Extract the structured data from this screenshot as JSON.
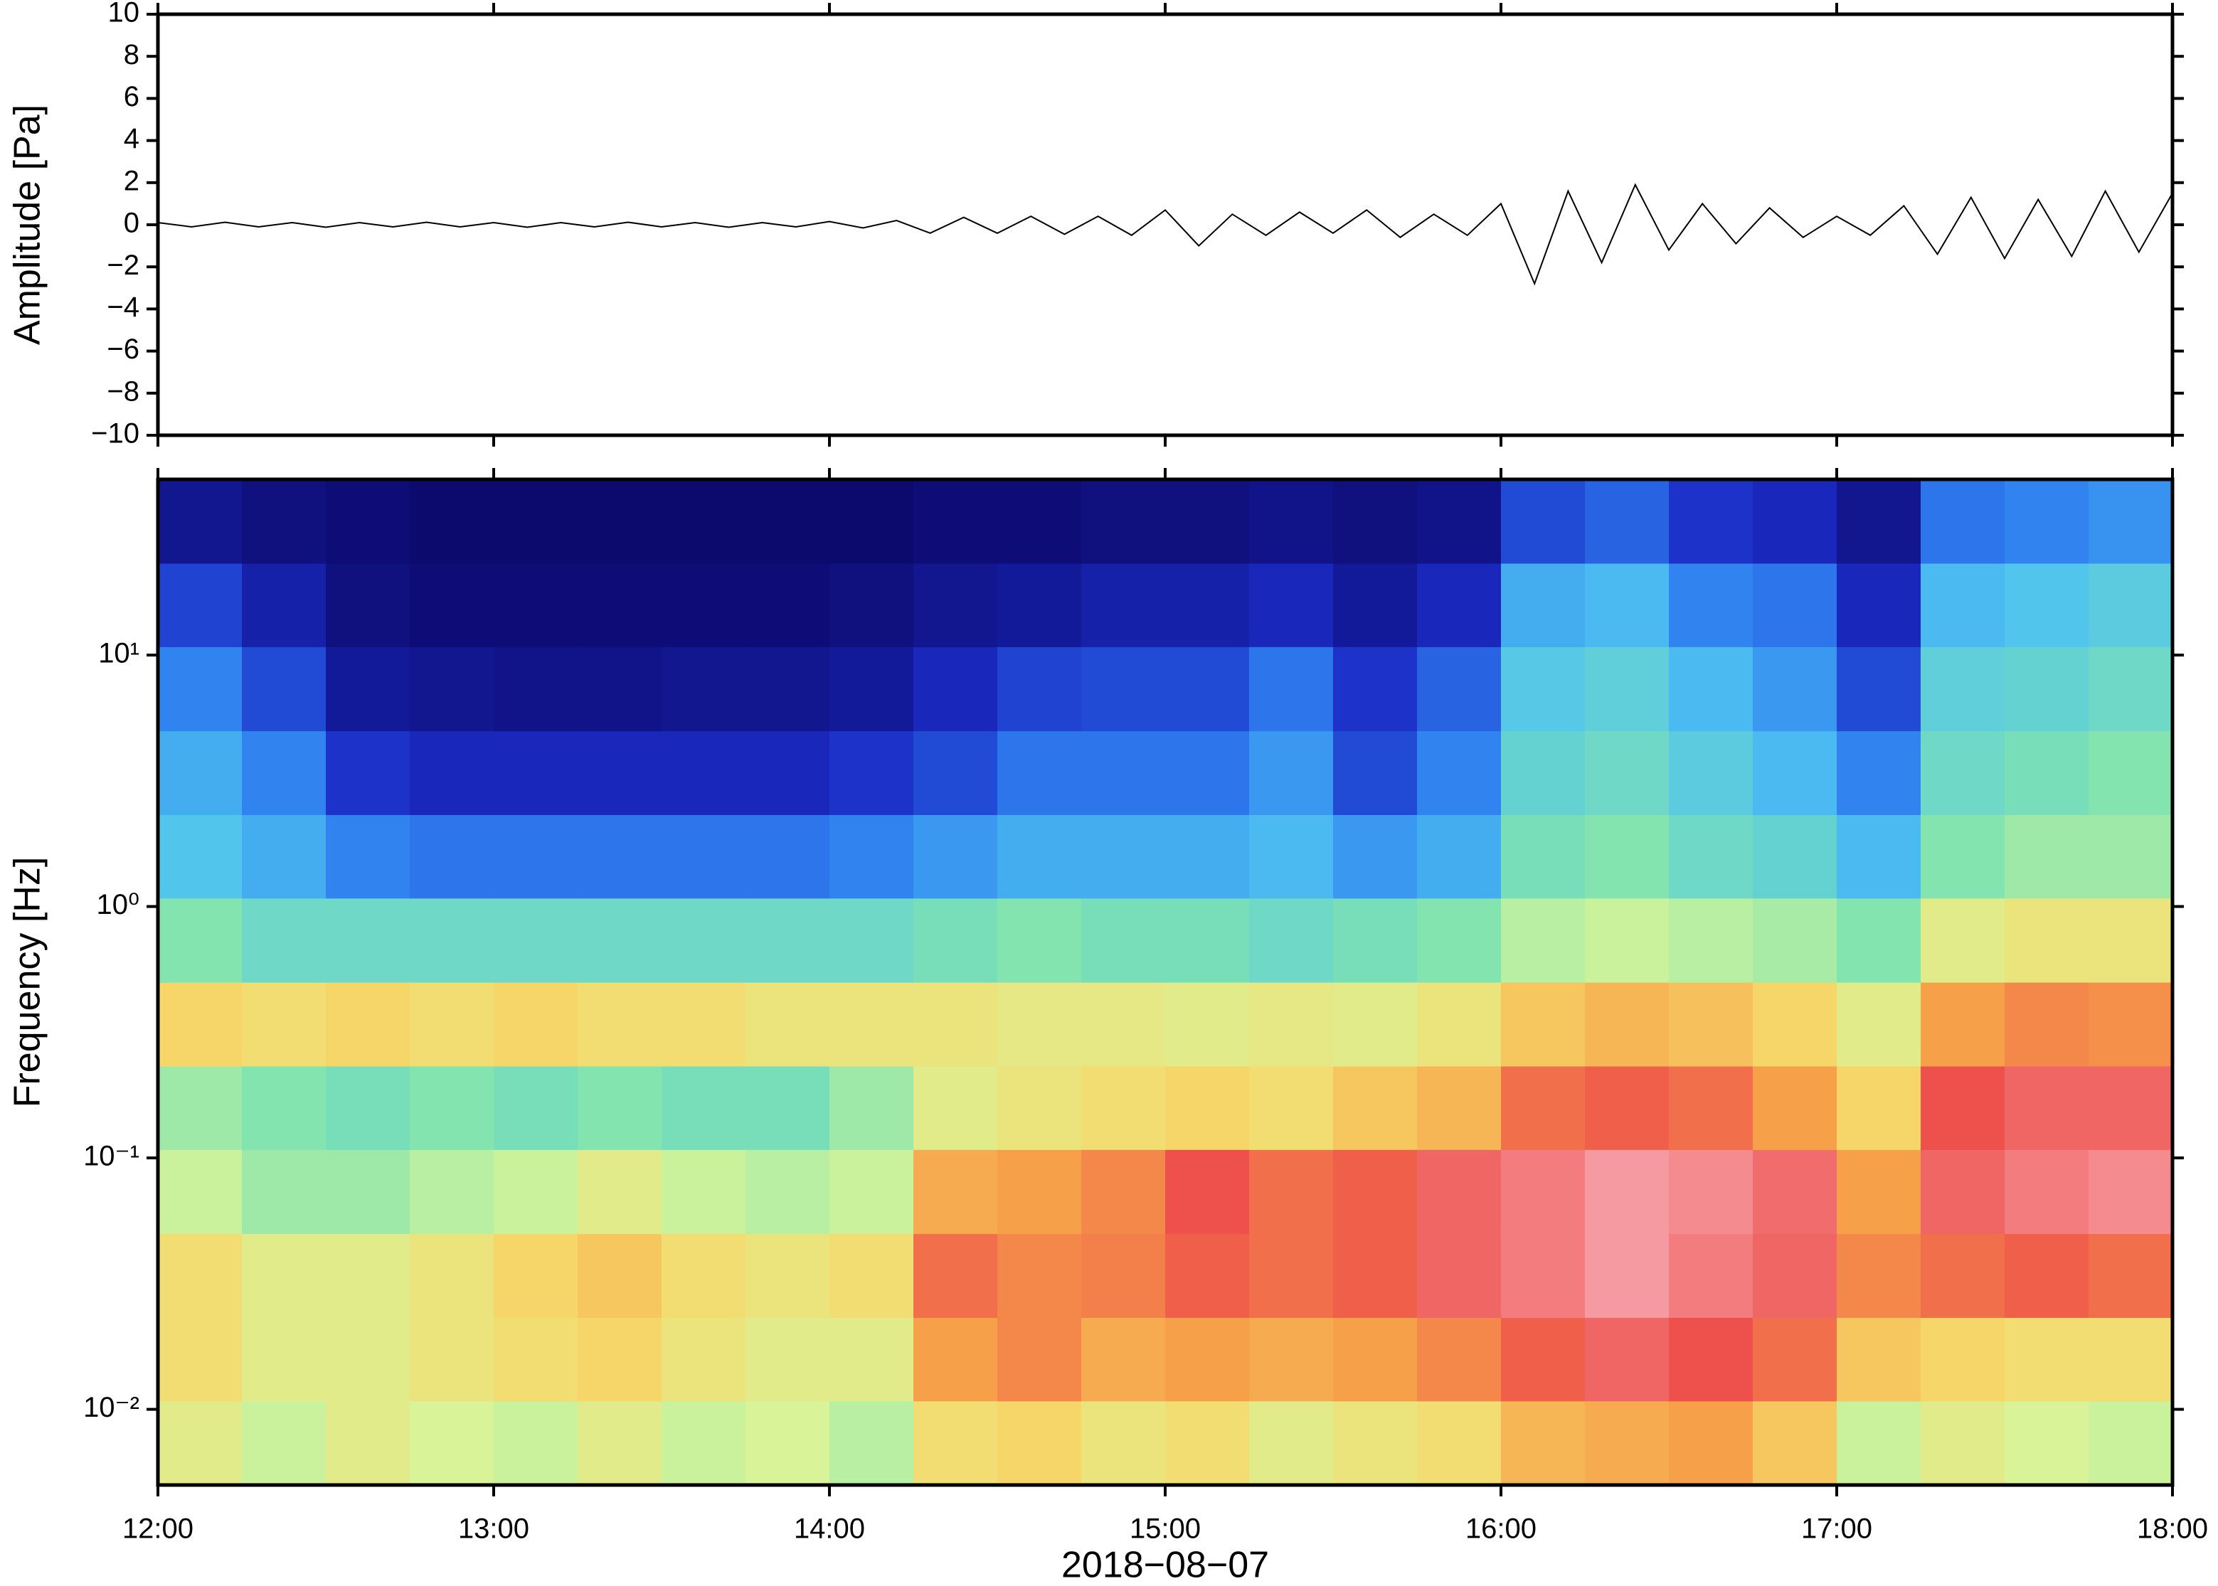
{
  "chart_data": [
    {
      "type": "line",
      "ylabel": "Amplitude [Pa]",
      "color": "#000000",
      "xlim": [
        12,
        18
      ],
      "xticks": [
        12,
        13,
        14,
        15,
        16,
        17,
        18
      ],
      "ylim": [
        -10,
        10
      ],
      "yticks": [
        {
          "value": -10,
          "label": "−10"
        },
        {
          "value": -8,
          "label": "−8"
        },
        {
          "value": -6,
          "label": "−6"
        },
        {
          "value": -4,
          "label": "−4"
        },
        {
          "value": -2,
          "label": "−2"
        },
        0,
        2,
        4,
        6,
        8,
        10
      ],
      "x": [
        12.0,
        12.1,
        12.2,
        12.3,
        12.4,
        12.5,
        12.6,
        12.7,
        12.8,
        12.9,
        13.0,
        13.1,
        13.2,
        13.3,
        13.4,
        13.5,
        13.6,
        13.7,
        13.8,
        13.9,
        14.0,
        14.1,
        14.2,
        14.3,
        14.4,
        14.5,
        14.6,
        14.7,
        14.8,
        14.9,
        15.0,
        15.1,
        15.2,
        15.3,
        15.4,
        15.5,
        15.6,
        15.7,
        15.8,
        15.9,
        16.0,
        16.1,
        16.2,
        16.3,
        16.4,
        16.5,
        16.6,
        16.7,
        16.8,
        16.9,
        17.0,
        17.1,
        17.2,
        17.3,
        17.4,
        17.5,
        17.6,
        17.7,
        17.8,
        17.9,
        18.0
      ],
      "values": [
        0.1,
        -0.1,
        0.12,
        -0.1,
        0.1,
        -0.12,
        0.1,
        -0.1,
        0.12,
        -0.1,
        0.1,
        -0.12,
        0.1,
        -0.1,
        0.12,
        -0.1,
        0.1,
        -0.12,
        0.1,
        -0.1,
        0.15,
        -0.15,
        0.2,
        -0.4,
        0.35,
        -0.4,
        0.4,
        -0.45,
        0.4,
        -0.5,
        0.7,
        -1.0,
        0.5,
        -0.5,
        0.6,
        -0.4,
        0.7,
        -0.6,
        0.5,
        -0.5,
        1.0,
        -2.8,
        1.6,
        -1.8,
        1.9,
        -1.2,
        1.0,
        -0.9,
        0.8,
        -0.6,
        0.4,
        -0.5,
        0.9,
        -1.4,
        1.3,
        -1.6,
        1.2,
        -1.5,
        1.6,
        -1.3,
        1.5
      ]
    },
    {
      "type": "heatmap",
      "ylabel": "Frequency [Hz]",
      "xlabel": "2018−08−07",
      "yscale": "log",
      "xlim": [
        12,
        18
      ],
      "xticks": [
        {
          "value": 12,
          "label": "12:00"
        },
        {
          "value": 13,
          "label": "13:00"
        },
        {
          "value": 14,
          "label": "14:00"
        },
        {
          "value": 15,
          "label": "15:00"
        },
        {
          "value": 16,
          "label": "16:00"
        },
        {
          "value": 17,
          "label": "17:00"
        },
        {
          "value": 18,
          "label": "18:00"
        }
      ],
      "ylim": [
        0.005,
        50
      ],
      "yticks": [
        {
          "value": 0.01,
          "label": "10⁻²"
        },
        {
          "value": 0.1,
          "label": "10⁻¹"
        },
        {
          "value": 1,
          "label": "10⁰"
        },
        {
          "value": 10,
          "label": "10¹"
        }
      ],
      "colormap": [
        "#0d0a6e",
        "#1a2bc4",
        "#2f7ff0",
        "#4fc3f0",
        "#7fe3b0",
        "#d8f59a",
        "#f6d86a",
        "#f6a24a",
        "#ee4f4a",
        "#f59aa0"
      ],
      "xbins": [
        12,
        12.25,
        12.5,
        12.75,
        13,
        13.25,
        13.5,
        13.75,
        14,
        14.25,
        14.5,
        14.75,
        15,
        15.25,
        15.5,
        15.75,
        16,
        16.25,
        16.5,
        16.75,
        17,
        17.25,
        17.5,
        17.75,
        18
      ],
      "ybins": [
        0.005,
        0.0108,
        0.0232,
        0.05,
        0.108,
        0.232,
        0.5,
        1.08,
        2.32,
        5,
        10.8,
        23.2,
        50
      ],
      "values": [
        [
          0.55,
          0.5,
          0.55,
          0.52,
          0.5,
          0.55,
          0.5,
          0.52,
          0.48,
          0.6,
          0.62,
          0.58,
          0.6,
          0.55,
          0.58,
          0.6,
          0.68,
          0.7,
          0.72,
          0.65,
          0.5,
          0.55,
          0.52,
          0.5
        ],
        [
          0.6,
          0.55,
          0.55,
          0.58,
          0.6,
          0.62,
          0.58,
          0.55,
          0.55,
          0.72,
          0.75,
          0.7,
          0.72,
          0.7,
          0.72,
          0.75,
          0.8,
          0.85,
          0.82,
          0.78,
          0.65,
          0.62,
          0.6,
          0.6
        ],
        [
          0.6,
          0.55,
          0.55,
          0.58,
          0.62,
          0.65,
          0.6,
          0.58,
          0.6,
          0.78,
          0.75,
          0.76,
          0.8,
          0.78,
          0.8,
          0.85,
          0.88,
          0.92,
          0.88,
          0.85,
          0.75,
          0.78,
          0.8,
          0.78
        ],
        [
          0.5,
          0.45,
          0.45,
          0.48,
          0.5,
          0.55,
          0.5,
          0.48,
          0.5,
          0.7,
          0.72,
          0.75,
          0.82,
          0.78,
          0.8,
          0.85,
          0.88,
          0.92,
          0.9,
          0.86,
          0.72,
          0.85,
          0.88,
          0.9
        ],
        [
          0.45,
          0.42,
          0.4,
          0.42,
          0.4,
          0.42,
          0.4,
          0.4,
          0.45,
          0.55,
          0.58,
          0.6,
          0.62,
          0.6,
          0.65,
          0.68,
          0.78,
          0.8,
          0.78,
          0.72,
          0.62,
          0.82,
          0.85,
          0.85
        ],
        [
          0.62,
          0.6,
          0.62,
          0.6,
          0.62,
          0.6,
          0.6,
          0.58,
          0.58,
          0.58,
          0.56,
          0.56,
          0.55,
          0.56,
          0.55,
          0.58,
          0.65,
          0.68,
          0.66,
          0.62,
          0.55,
          0.72,
          0.75,
          0.74
        ],
        [
          0.42,
          0.38,
          0.38,
          0.38,
          0.38,
          0.38,
          0.38,
          0.38,
          0.38,
          0.4,
          0.42,
          0.4,
          0.4,
          0.38,
          0.4,
          0.42,
          0.48,
          0.5,
          0.48,
          0.46,
          0.42,
          0.55,
          0.58,
          0.58
        ],
        [
          0.32,
          0.28,
          0.22,
          0.2,
          0.2,
          0.2,
          0.2,
          0.2,
          0.22,
          0.25,
          0.28,
          0.28,
          0.28,
          0.3,
          0.25,
          0.28,
          0.4,
          0.42,
          0.38,
          0.36,
          0.3,
          0.42,
          0.45,
          0.45
        ],
        [
          0.28,
          0.22,
          0.12,
          0.1,
          0.1,
          0.1,
          0.1,
          0.1,
          0.12,
          0.15,
          0.2,
          0.2,
          0.2,
          0.25,
          0.15,
          0.22,
          0.36,
          0.38,
          0.34,
          0.3,
          0.22,
          0.38,
          0.4,
          0.42
        ],
        [
          0.22,
          0.15,
          0.06,
          0.05,
          0.04,
          0.04,
          0.05,
          0.05,
          0.06,
          0.1,
          0.14,
          0.15,
          0.15,
          0.2,
          0.12,
          0.18,
          0.33,
          0.35,
          0.3,
          0.25,
          0.15,
          0.35,
          0.36,
          0.38
        ],
        [
          0.14,
          0.08,
          0.03,
          0.02,
          0.02,
          0.02,
          0.02,
          0.02,
          0.03,
          0.05,
          0.06,
          0.08,
          0.08,
          0.1,
          0.06,
          0.1,
          0.28,
          0.3,
          0.22,
          0.2,
          0.1,
          0.3,
          0.32,
          0.34
        ],
        [
          0.05,
          0.03,
          0.02,
          0.01,
          0.01,
          0.01,
          0.01,
          0.01,
          0.01,
          0.02,
          0.02,
          0.03,
          0.03,
          0.04,
          0.03,
          0.04,
          0.15,
          0.18,
          0.12,
          0.1,
          0.05,
          0.2,
          0.22,
          0.24
        ]
      ]
    }
  ]
}
